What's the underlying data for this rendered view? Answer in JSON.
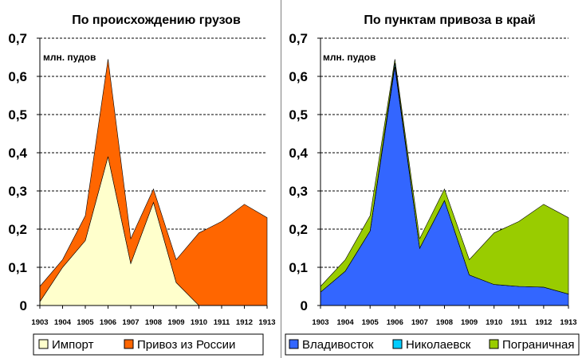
{
  "chart_data": [
    {
      "type": "area",
      "stacked": true,
      "title": "По происхождению грузов",
      "unit_label": "млн. пудов",
      "categories": [
        "1903",
        "1904",
        "1905",
        "1906",
        "1907",
        "1908",
        "1909",
        "1910",
        "1911",
        "1912",
        "1913"
      ],
      "series": [
        {
          "name": "Импорт",
          "color": "#ffffcc",
          "values": [
            0.01,
            0.1,
            0.17,
            0.39,
            0.11,
            0.27,
            0.06,
            0.0,
            0.0,
            0.0,
            0.0
          ]
        },
        {
          "name": "Привоз из России",
          "color": "#ff6600",
          "values": [
            0.04,
            0.02,
            0.065,
            0.255,
            0.065,
            0.035,
            0.06,
            0.19,
            0.22,
            0.265,
            0.23
          ]
        }
      ],
      "ylim": [
        0,
        0.7
      ],
      "yticks": [
        "0",
        "0,1",
        "0,2",
        "0,3",
        "0,4",
        "0,5",
        "0,6",
        "0,7"
      ],
      "grid": true,
      "legend_position": "bottom"
    },
    {
      "type": "area",
      "stacked": true,
      "title": "По пунктам привоза в край",
      "unit_label": "млн. пудов",
      "categories": [
        "1903",
        "1904",
        "1905",
        "1906",
        "1907",
        "1908",
        "1909",
        "1910",
        "1911",
        "1912",
        "1913"
      ],
      "series": [
        {
          "name": "Владивосток",
          "color": "#3366ff",
          "values": [
            0.035,
            0.09,
            0.195,
            0.625,
            0.15,
            0.275,
            0.08,
            0.055,
            0.05,
            0.048,
            0.03
          ]
        },
        {
          "name": "Николаевск",
          "color": "#00ccff",
          "values": [
            0.0,
            0.0,
            0.0,
            0.01,
            0.0,
            0.0,
            0.0,
            0.0,
            0.0,
            0.0,
            0.0
          ]
        },
        {
          "name": "Пограничная",
          "color": "#99cc00",
          "values": [
            0.015,
            0.03,
            0.04,
            0.01,
            0.025,
            0.03,
            0.04,
            0.135,
            0.17,
            0.217,
            0.2
          ]
        }
      ],
      "ylim": [
        0,
        0.7
      ],
      "yticks": [
        "0",
        "0,1",
        "0,2",
        "0,3",
        "0,4",
        "0,5",
        "0,6",
        "0,7"
      ],
      "grid": true,
      "legend_position": "bottom"
    }
  ]
}
